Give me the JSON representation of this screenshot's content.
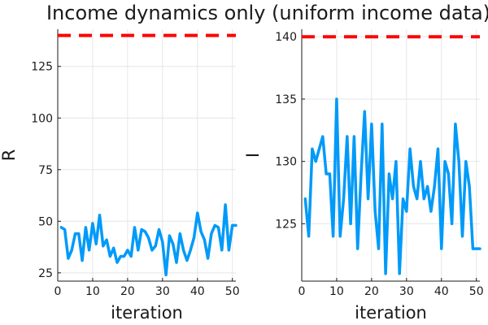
{
  "title": "Income dynamics only (uniform income data)",
  "colors": {
    "series": "#009AF9",
    "reference": "#FF0000"
  },
  "chart_data": [
    {
      "type": "line",
      "xlabel": "iteration",
      "ylabel": "R",
      "xlim": [
        0,
        51
      ],
      "ylim": [
        21,
        143
      ],
      "xticks": [
        0,
        10,
        20,
        30,
        40,
        50
      ],
      "yticks": [
        25,
        50,
        75,
        100,
        125
      ],
      "grid": true,
      "reference_line": {
        "y": 140,
        "style": "dashed"
      },
      "x": [
        1,
        2,
        3,
        4,
        5,
        6,
        7,
        8,
        9,
        10,
        11,
        12,
        13,
        14,
        15,
        16,
        17,
        18,
        19,
        20,
        21,
        22,
        23,
        24,
        25,
        26,
        27,
        28,
        29,
        30,
        31,
        32,
        33,
        34,
        35,
        36,
        37,
        38,
        39,
        40,
        41,
        42,
        43,
        44,
        45,
        46,
        47,
        48,
        49,
        50,
        51
      ],
      "values": [
        47,
        46,
        32,
        36,
        44,
        44,
        31,
        47,
        36,
        49,
        39,
        53,
        38,
        41,
        33,
        37,
        30,
        33,
        33,
        36,
        33,
        47,
        36,
        46,
        45,
        42,
        36,
        38,
        46,
        40,
        24,
        43,
        39,
        30,
        44,
        36,
        31,
        36,
        42,
        54,
        45,
        41,
        32,
        44,
        48,
        47,
        36,
        58,
        36,
        48,
        48
      ]
    },
    {
      "type": "line",
      "xlabel": "iteration",
      "ylabel": "I",
      "xlim": [
        0,
        51
      ],
      "ylim": [
        120.4,
        140.6
      ],
      "xticks": [
        0,
        10,
        20,
        30,
        40,
        50
      ],
      "yticks": [
        125,
        130,
        135,
        140
      ],
      "grid": true,
      "reference_line": {
        "y": 140,
        "style": "dashed"
      },
      "x": [
        1,
        2,
        3,
        4,
        5,
        6,
        7,
        8,
        9,
        10,
        11,
        12,
        13,
        14,
        15,
        16,
        17,
        18,
        19,
        20,
        21,
        22,
        23,
        24,
        25,
        26,
        27,
        28,
        29,
        30,
        31,
        32,
        33,
        34,
        35,
        36,
        37,
        38,
        39,
        40,
        41,
        42,
        43,
        44,
        45,
        46,
        47,
        48,
        49,
        50,
        51
      ],
      "values": [
        127,
        124,
        131,
        130,
        131,
        132,
        129,
        129,
        124,
        135,
        124,
        127,
        132,
        125,
        132,
        123,
        129,
        134,
        127,
        133,
        126,
        123,
        133,
        121,
        129,
        127,
        130,
        121,
        127,
        126,
        131,
        128,
        127,
        130,
        127,
        128,
        126,
        128,
        131,
        123,
        130,
        129,
        125,
        133,
        130,
        124,
        130,
        128,
        123,
        123,
        123
      ]
    }
  ]
}
